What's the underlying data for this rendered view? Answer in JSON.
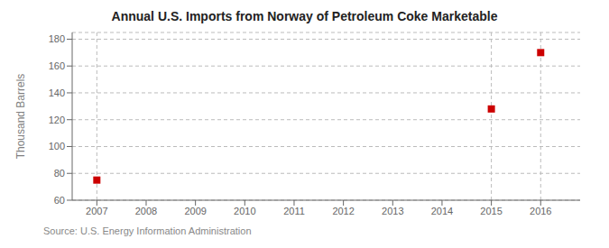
{
  "chart_data": {
    "type": "scatter",
    "title": "Annual U.S. Imports from Norway of Petroleum Coke Marketable",
    "y_label": "Thousand Barrels",
    "source": "Source: U.S. Energy Information Administration",
    "x": [
      2007,
      2015,
      2016
    ],
    "values": [
      75,
      128,
      170
    ],
    "color": "#cc0000",
    "marker": "square",
    "xlim": [
      2006.5,
      2016.8
    ],
    "ylim": [
      60,
      185
    ],
    "xticks": [
      2007,
      2008,
      2009,
      2010,
      2011,
      2012,
      2013,
      2014,
      2015,
      2016
    ],
    "yticks": [
      60,
      80,
      100,
      120,
      140,
      160,
      180
    ],
    "grid": "y"
  }
}
